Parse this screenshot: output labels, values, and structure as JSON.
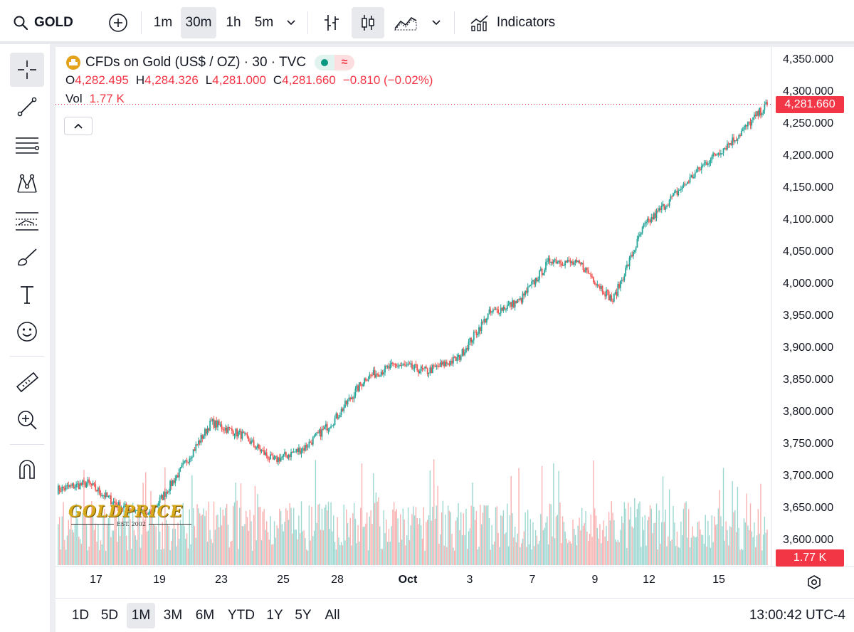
{
  "topbar": {
    "symbol": "GOLD",
    "intervals": [
      "1m",
      "30m",
      "1h",
      "5m"
    ],
    "active_interval": "30m",
    "indicators_label": "Indicators"
  },
  "legend": {
    "title": "CFDs on Gold (US$ / OZ) · 30 · TVC",
    "o_label": "O",
    "o_value": "4,282.495",
    "h_label": "H",
    "h_value": "4,284.326",
    "l_label": "L",
    "l_value": "4,281.000",
    "c_label": "C",
    "c_value": "4,281.660",
    "change": "−0.810 (−0.02%)",
    "vol_label": "Vol",
    "vol_value": "1.77 K"
  },
  "price_axis": {
    "ticks": [
      "4,350.000",
      "4,300.000",
      "4,250.000",
      "4,200.000",
      "4,150.000",
      "4,100.000",
      "4,050.000",
      "4,000.000",
      "3,950.000",
      "3,900.000",
      "3,850.000",
      "3,800.000",
      "3,750.000",
      "3,700.000",
      "3,650.000",
      "3,600.000"
    ],
    "last_price": "4,281.660",
    "volume_tag": "1.77 K"
  },
  "time_axis": {
    "ticks": [
      "17",
      "19",
      "23",
      "25",
      "28",
      "Oct",
      "3",
      "7",
      "9",
      "12",
      "15"
    ]
  },
  "bottombar": {
    "ranges": [
      "1D",
      "5D",
      "1M",
      "3M",
      "6M",
      "YTD",
      "1Y",
      "5Y",
      "All"
    ],
    "active_range": "1M",
    "clock": "13:00:42 UTC-4"
  },
  "watermark": {
    "brand": "GOLDPRICE",
    "est": "EST. 2002"
  },
  "colors": {
    "up": "#26a69a",
    "down": "#ef5350",
    "last_price": "#f23645"
  },
  "chart_data": {
    "type": "candlestick",
    "symbol": "CFDs on Gold (US$ / OZ)",
    "interval": "30",
    "ylim": [
      3580,
      4360
    ],
    "x": [
      "Sep 16",
      "Sep 17",
      "Sep 18",
      "Sep 19",
      "Sep 22",
      "Sep 23",
      "Sep 24",
      "Sep 25",
      "Sep 26",
      "Sep 29",
      "Sep 30",
      "Oct 1",
      "Oct 2",
      "Oct 3",
      "Oct 6",
      "Oct 7",
      "Oct 8",
      "Oct 9",
      "Oct 10",
      "Oct 13",
      "Oct 14",
      "Oct 15",
      "Oct 16",
      "Oct 17"
    ],
    "close": [
      3680,
      3690,
      3655,
      3640,
      3710,
      3785,
      3765,
      3725,
      3745,
      3790,
      3855,
      3875,
      3865,
      3885,
      3955,
      3975,
      4040,
      4030,
      3975,
      4090,
      4140,
      4190,
      4230,
      4281.66
    ]
  }
}
